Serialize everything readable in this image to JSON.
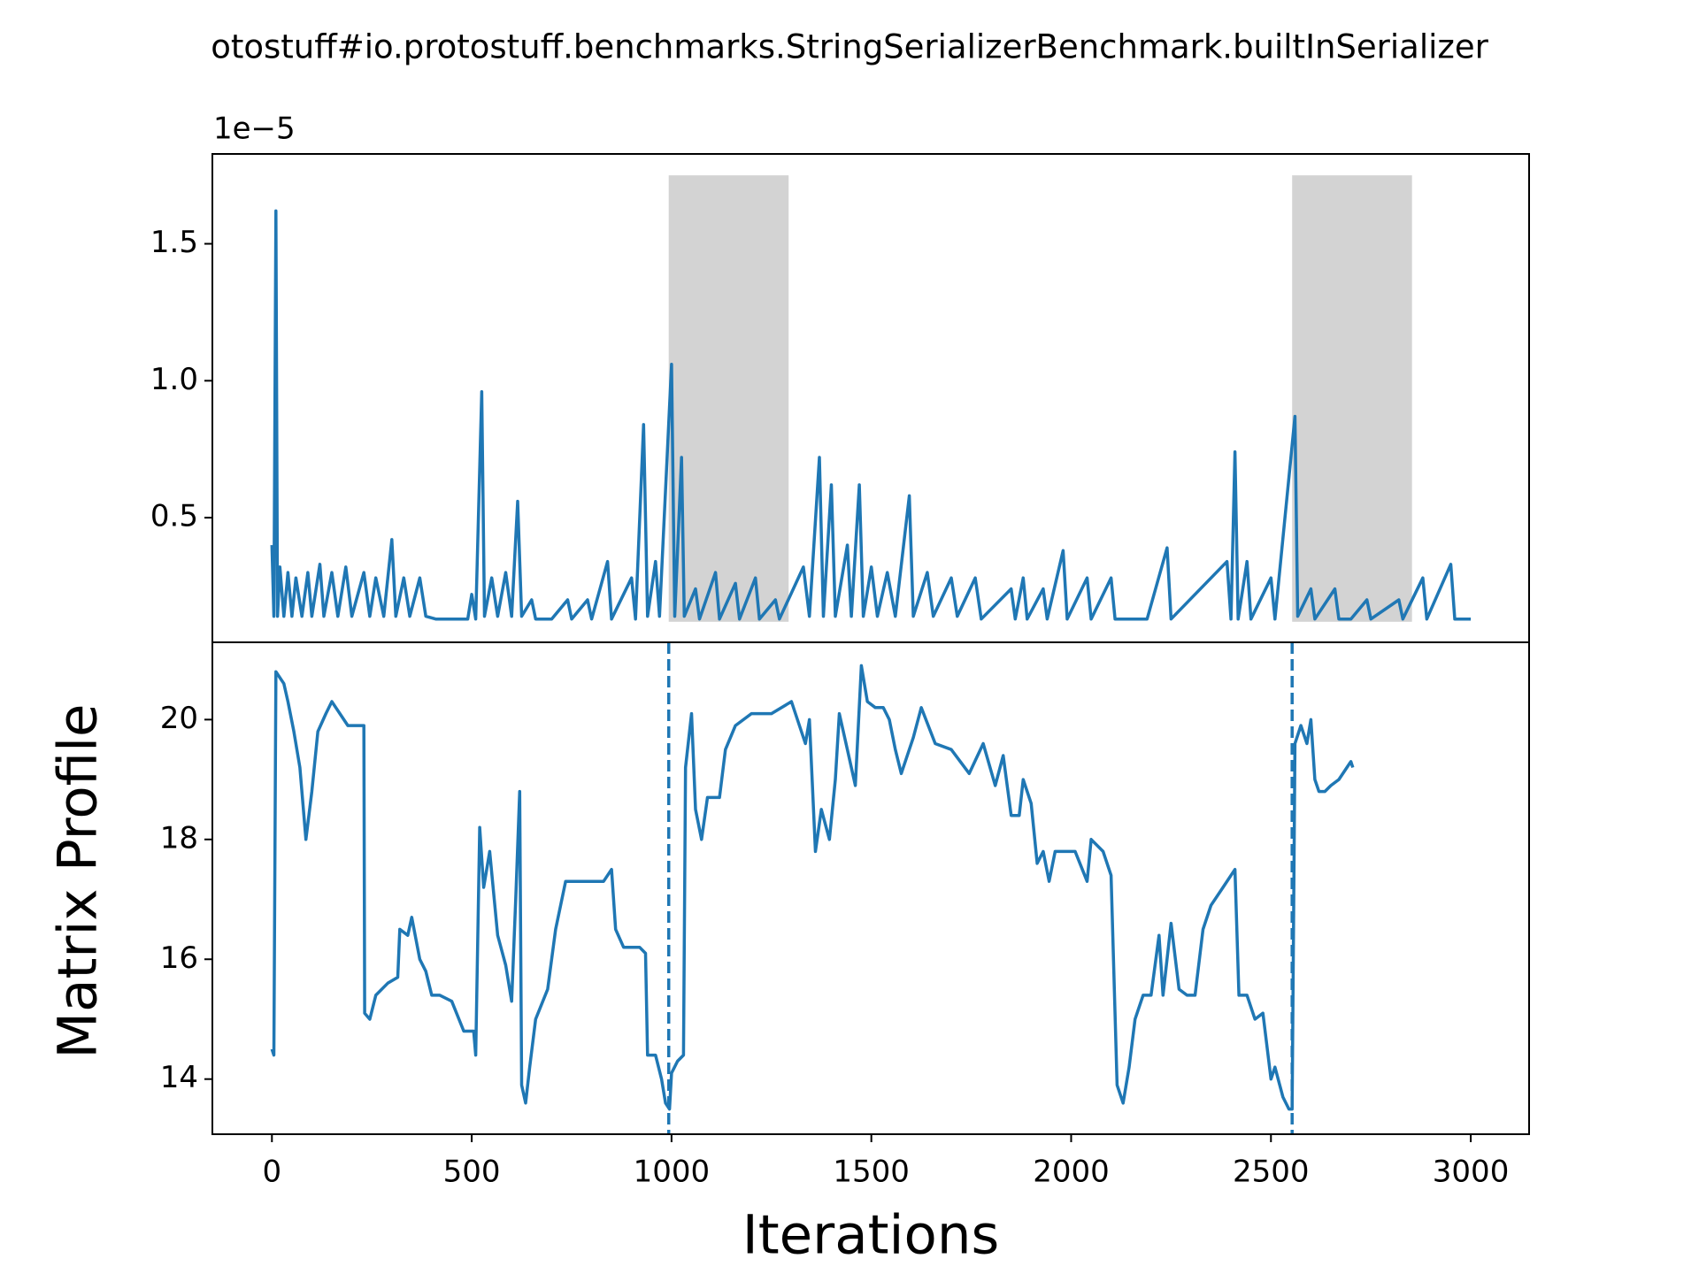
{
  "chart_data": [
    {
      "type": "line",
      "title": "otostuff#io.protostuff.benchmarks.StringSerializerBenchmark.builtInSerializer",
      "y_offset_label": "1e−5",
      "color": "#1f77b4",
      "xlim": [
        -149,
        3146
      ],
      "ylim": [
        0.045,
        1.828
      ],
      "yticks": [
        0.5,
        {
          "value": 1,
          "label": "1.0"
        },
        1.5
      ],
      "shaded_spans": [
        [
          993,
          1293
        ],
        [
          2553,
          2853
        ]
      ],
      "span_ylim": [
        0.12,
        1.75
      ],
      "span_color": "#d3d3d3",
      "x": [
        0,
        5,
        10,
        14,
        20,
        30,
        40,
        50,
        60,
        75,
        90,
        100,
        120,
        130,
        150,
        165,
        185,
        200,
        230,
        245,
        260,
        280,
        300,
        310,
        330,
        345,
        370,
        385,
        410,
        450,
        490,
        500,
        510,
        525,
        532,
        550,
        565,
        585,
        600,
        615,
        625,
        650,
        660,
        700,
        740,
        750,
        790,
        800,
        840,
        850,
        900,
        910,
        930,
        940,
        960,
        970,
        1000,
        1008,
        1025,
        1032,
        1060,
        1070,
        1110,
        1120,
        1160,
        1170,
        1210,
        1220,
        1260,
        1270,
        1330,
        1345,
        1370,
        1380,
        1400,
        1410,
        1440,
        1450,
        1470,
        1480,
        1500,
        1515,
        1540,
        1560,
        1595,
        1605,
        1640,
        1655,
        1700,
        1715,
        1760,
        1775,
        1850,
        1860,
        1880,
        1890,
        1930,
        1940,
        1980,
        1990,
        2040,
        2050,
        2100,
        2110,
        2130,
        2190,
        2240,
        2250,
        2390,
        2400,
        2410,
        2418,
        2440,
        2450,
        2500,
        2510,
        2560,
        2567,
        2600,
        2610,
        2660,
        2670,
        2700,
        2740,
        2750,
        2820,
        2830,
        2880,
        2890,
        2950,
        2960,
        3000
      ],
      "values": [
        0.4,
        0.14,
        1.62,
        0.14,
        0.32,
        0.14,
        0.3,
        0.14,
        0.28,
        0.14,
        0.3,
        0.14,
        0.33,
        0.14,
        0.3,
        0.14,
        0.32,
        0.14,
        0.3,
        0.14,
        0.28,
        0.14,
        0.42,
        0.14,
        0.28,
        0.14,
        0.28,
        0.14,
        0.13,
        0.13,
        0.13,
        0.22,
        0.13,
        0.96,
        0.14,
        0.28,
        0.14,
        0.3,
        0.14,
        0.56,
        0.14,
        0.2,
        0.13,
        0.13,
        0.2,
        0.13,
        0.2,
        0.13,
        0.34,
        0.13,
        0.28,
        0.13,
        0.84,
        0.14,
        0.34,
        0.14,
        1.06,
        0.14,
        0.72,
        0.14,
        0.24,
        0.13,
        0.3,
        0.13,
        0.26,
        0.13,
        0.28,
        0.13,
        0.2,
        0.13,
        0.32,
        0.14,
        0.72,
        0.14,
        0.62,
        0.14,
        0.4,
        0.14,
        0.62,
        0.14,
        0.32,
        0.14,
        0.3,
        0.14,
        0.58,
        0.14,
        0.3,
        0.14,
        0.28,
        0.14,
        0.28,
        0.13,
        0.24,
        0.13,
        0.28,
        0.13,
        0.24,
        0.13,
        0.38,
        0.13,
        0.28,
        0.13,
        0.28,
        0.13,
        0.13,
        0.13,
        0.39,
        0.13,
        0.34,
        0.13,
        0.74,
        0.13,
        0.34,
        0.13,
        0.28,
        0.13,
        0.87,
        0.14,
        0.24,
        0.13,
        0.24,
        0.13,
        0.13,
        0.2,
        0.13,
        0.2,
        0.13,
        0.28,
        0.13,
        0.33,
        0.13,
        0.13
      ]
    },
    {
      "type": "line",
      "xlabel": "Iterations",
      "ylabel": "Matrix Profile",
      "color": "#1f77b4",
      "xlim": [
        -149,
        3146
      ],
      "ylim": [
        13.08,
        21.29
      ],
      "xticks": [
        0,
        500,
        1000,
        1500,
        2000,
        2500,
        3000
      ],
      "yticks": [
        14,
        16,
        18,
        20
      ],
      "vlines": [
        993,
        2553
      ],
      "x": [
        0,
        5,
        10,
        20,
        30,
        40,
        55,
        70,
        85,
        100,
        115,
        135,
        150,
        170,
        190,
        220,
        230,
        232,
        245,
        260,
        290,
        315,
        320,
        340,
        350,
        370,
        385,
        400,
        420,
        450,
        480,
        505,
        510,
        520,
        530,
        545,
        565,
        585,
        600,
        610,
        620,
        625,
        635,
        645,
        660,
        690,
        710,
        735,
        780,
        830,
        850,
        860,
        880,
        920,
        935,
        940,
        960,
        975,
        985,
        995,
        1000,
        1015,
        1030,
        1035,
        1050,
        1060,
        1075,
        1090,
        1120,
        1135,
        1160,
        1200,
        1250,
        1300,
        1335,
        1345,
        1360,
        1375,
        1395,
        1410,
        1420,
        1440,
        1460,
        1475,
        1490,
        1510,
        1530,
        1545,
        1560,
        1575,
        1590,
        1605,
        1625,
        1660,
        1700,
        1745,
        1780,
        1810,
        1830,
        1850,
        1870,
        1880,
        1900,
        1915,
        1930,
        1945,
        1960,
        2010,
        2040,
        2050,
        2080,
        2100,
        2115,
        2130,
        2145,
        2160,
        2180,
        2200,
        2220,
        2230,
        2250,
        2270,
        2290,
        2310,
        2330,
        2350,
        2380,
        2410,
        2420,
        2440,
        2460,
        2480,
        2500,
        2510,
        2530,
        2545,
        2553,
        2560,
        2575,
        2590,
        2600,
        2610,
        2620,
        2635,
        2650,
        2670,
        2690,
        2700,
        2705
      ],
      "values": [
        14.5,
        14.4,
        20.8,
        20.7,
        20.6,
        20.3,
        19.8,
        19.2,
        18.0,
        18.8,
        19.8,
        20.1,
        20.3,
        20.1,
        19.9,
        19.9,
        19.9,
        15.1,
        15.0,
        15.4,
        15.6,
        15.7,
        16.5,
        16.4,
        16.7,
        16.0,
        15.8,
        15.4,
        15.4,
        15.3,
        14.8,
        14.8,
        14.4,
        18.2,
        17.2,
        17.8,
        16.4,
        15.9,
        15.3,
        17.0,
        18.8,
        13.9,
        13.6,
        14.2,
        15.0,
        15.5,
        16.5,
        17.3,
        17.3,
        17.3,
        17.5,
        16.5,
        16.2,
        16.2,
        16.1,
        14.4,
        14.4,
        14.0,
        13.6,
        13.5,
        14.1,
        14.3,
        14.4,
        19.2,
        20.1,
        18.5,
        18.0,
        18.7,
        18.7,
        19.5,
        19.9,
        20.1,
        20.1,
        20.3,
        19.6,
        20.0,
        17.8,
        18.5,
        18.0,
        19.0,
        20.1,
        19.5,
        18.9,
        20.9,
        20.3,
        20.2,
        20.2,
        20.0,
        19.5,
        19.1,
        19.4,
        19.7,
        20.2,
        19.6,
        19.5,
        19.1,
        19.6,
        18.9,
        19.4,
        18.4,
        18.4,
        19.0,
        18.6,
        17.6,
        17.8,
        17.3,
        17.8,
        17.8,
        17.3,
        18.0,
        17.8,
        17.4,
        13.9,
        13.6,
        14.2,
        15.0,
        15.4,
        15.4,
        16.4,
        15.4,
        16.6,
        15.5,
        15.4,
        15.4,
        16.5,
        16.9,
        17.2,
        17.5,
        15.4,
        15.4,
        15.0,
        15.1,
        14.0,
        14.2,
        13.7,
        13.5,
        13.5,
        19.6,
        19.9,
        19.6,
        20.0,
        19.0,
        18.8,
        18.8,
        18.9,
        19.0,
        19.2,
        19.3,
        19.2
      ]
    }
  ]
}
